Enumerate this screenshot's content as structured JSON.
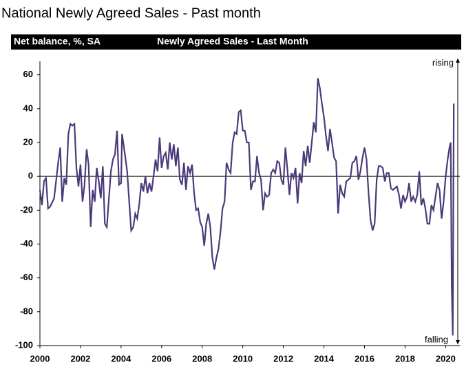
{
  "chart_data": {
    "type": "line",
    "title": "National Newly Agreed Sales - Past month",
    "ylabel": "Net balance, %, SA",
    "subtitle": "Newly  Agreed Sales - Last Month",
    "annotations": [
      "rising",
      "falling"
    ],
    "color": "#4b3a7a",
    "zero_line": true,
    "xlim": [
      2000,
      2020.7
    ],
    "xticks": [
      2000,
      2002,
      2004,
      2006,
      2008,
      2010,
      2012,
      2014,
      2016,
      2018,
      2020
    ],
    "ylim": [
      -100,
      68
    ],
    "yticks": [
      -100,
      -80,
      -60,
      -40,
      -20,
      0,
      20,
      40,
      60
    ],
    "x": [
      2000.0,
      2000.1,
      2000.2,
      2000.3,
      2000.4,
      2000.5,
      2000.7,
      2000.9,
      2001.0,
      2001.1,
      2001.2,
      2001.3,
      2001.4,
      2001.5,
      2001.6,
      2001.7,
      2001.8,
      2001.9,
      2002.0,
      2002.1,
      2002.2,
      2002.3,
      2002.4,
      2002.5,
      2002.6,
      2002.7,
      2002.8,
      2002.9,
      2003.0,
      2003.1,
      2003.2,
      2003.3,
      2003.5,
      2003.6,
      2003.7,
      2003.8,
      2003.9,
      2004.0,
      2004.05,
      2004.2,
      2004.3,
      2004.4,
      2004.5,
      2004.6,
      2004.7,
      2004.8,
      2004.9,
      2005.0,
      2005.1,
      2005.2,
      2005.3,
      2005.4,
      2005.5,
      2005.6,
      2005.7,
      2005.8,
      2005.9,
      2006.0,
      2006.1,
      2006.2,
      2006.3,
      2006.4,
      2006.5,
      2006.6,
      2006.7,
      2006.8,
      2006.9,
      2007.0,
      2007.1,
      2007.2,
      2007.3,
      2007.4,
      2007.5,
      2007.6,
      2007.7,
      2007.8,
      2007.9,
      2008.0,
      2008.1,
      2008.2,
      2008.3,
      2008.4,
      2008.5,
      2008.6,
      2008.7,
      2008.8,
      2008.9,
      2009.0,
      2009.1,
      2009.2,
      2009.3,
      2009.4,
      2009.5,
      2009.6,
      2009.7,
      2009.8,
      2009.9,
      2010.0,
      2010.1,
      2010.2,
      2010.3,
      2010.4,
      2010.5,
      2010.6,
      2010.7,
      2010.8,
      2010.9,
      2011.0,
      2011.1,
      2011.2,
      2011.3,
      2011.4,
      2011.5,
      2011.6,
      2011.7,
      2011.8,
      2011.9,
      2012.0,
      2012.1,
      2012.2,
      2012.3,
      2012.4,
      2012.5,
      2012.6,
      2012.7,
      2012.8,
      2012.9,
      2013.0,
      2013.1,
      2013.2,
      2013.3,
      2013.4,
      2013.5,
      2013.6,
      2013.7,
      2013.8,
      2013.9,
      2014.0,
      2014.1,
      2014.2,
      2014.3,
      2014.4,
      2014.5,
      2014.6,
      2014.7,
      2014.8,
      2014.9,
      2015.0,
      2015.1,
      2015.2,
      2015.3,
      2015.4,
      2015.5,
      2015.6,
      2015.7,
      2015.8,
      2015.9,
      2016.0,
      2016.1,
      2016.2,
      2016.3,
      2016.4,
      2016.5,
      2016.6,
      2016.7,
      2016.8,
      2016.9,
      2017.0,
      2017.1,
      2017.2,
      2017.3,
      2017.4,
      2017.5,
      2017.6,
      2017.7,
      2017.8,
      2017.9,
      2018.0,
      2018.1,
      2018.2,
      2018.3,
      2018.4,
      2018.5,
      2018.6,
      2018.7,
      2018.8,
      2018.9,
      2019.0,
      2019.1,
      2019.2,
      2019.3,
      2019.4,
      2019.5,
      2019.6,
      2019.7,
      2019.8,
      2019.9,
      2020.0,
      2020.1,
      2020.2,
      2020.25,
      2020.3,
      2020.35,
      2020.4
    ],
    "values": [
      -8,
      -17,
      -3,
      -1,
      -19,
      -18,
      -13,
      8,
      17,
      -15,
      -1,
      -5,
      25,
      31,
      30,
      31,
      5,
      -6,
      7,
      -15,
      -5,
      16,
      7,
      -30,
      -8,
      -15,
      5,
      -3,
      -13,
      6,
      -28,
      -30,
      3,
      10,
      13,
      27,
      -5,
      -4,
      25,
      12,
      3,
      -15,
      -32,
      -30,
      -22,
      -25,
      -16,
      -4,
      -9,
      0,
      -10,
      -4,
      -9,
      0,
      10,
      3,
      23,
      5,
      12,
      14,
      4,
      20,
      10,
      19,
      6,
      17,
      -2,
      -5,
      8,
      -8,
      6,
      2,
      7,
      -10,
      -20,
      -19,
      -27,
      -30,
      -41,
      -28,
      -22,
      -30,
      -48,
      -55,
      -48,
      -43,
      -33,
      -19,
      -15,
      8,
      4,
      2,
      20,
      26,
      25,
      38,
      39,
      27,
      27,
      20,
      20,
      -8,
      -3,
      -3,
      12,
      2,
      -2,
      -20,
      -10,
      -12,
      -11,
      2,
      4,
      2,
      9,
      8,
      -2,
      -5,
      17,
      4,
      -11,
      2,
      -1,
      5,
      -16,
      2,
      -4,
      15,
      6,
      18,
      8,
      20,
      32,
      26,
      58,
      52,
      43,
      35,
      24,
      15,
      28,
      20,
      11,
      9,
      -22,
      -5,
      -10,
      -12,
      -3,
      -2,
      -1,
      8,
      9,
      12,
      -2,
      3,
      11,
      17,
      10,
      -10,
      -26,
      -32,
      -28,
      -2,
      6,
      6,
      5,
      -3,
      2,
      2,
      -7,
      -8,
      -7,
      -6,
      -11,
      -19,
      -11,
      -15,
      -12,
      -4,
      -15,
      -12,
      -15,
      -11,
      3,
      -17,
      -13,
      -19,
      -28,
      -28,
      -17,
      -20,
      -12,
      -4,
      -8,
      -25,
      -15,
      0,
      10,
      18,
      20,
      -65,
      -94,
      43
    ]
  }
}
